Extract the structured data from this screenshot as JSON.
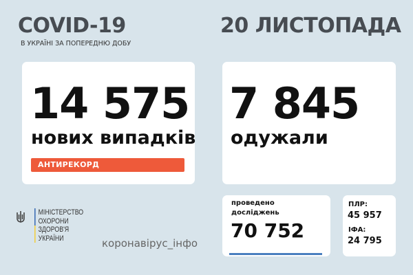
{
  "header": {
    "title": "COVID-19",
    "subtitle": "В УКРАЇНІ ЗА ПОПЕРЕДНЮ ДОБУ",
    "date": "20 ЛИСТОПАДА"
  },
  "new_cases": {
    "value": "14 575",
    "label": "нових випадків",
    "badge": "АНТИРЕКОРД",
    "badge_color": "#ee5a3a"
  },
  "recovered": {
    "value": "7 845",
    "label": "одужали"
  },
  "tests": {
    "label_line1": "проведено",
    "label_line2": "досліджень",
    "value": "70 752",
    "accent": "#4a7fbf"
  },
  "tests_breakdown": {
    "pcr_label": "ПЛР:",
    "pcr_value": "45 957",
    "ifa_label": "ІФА:",
    "ifa_value": "24 795"
  },
  "footer": {
    "ministry": [
      "МІНІСТЕРСТВО",
      "ОХОРОНИ",
      "ЗДОРОВ'Я",
      "УКРАЇНИ"
    ],
    "emblem_icon": "trident-icon",
    "site": "коронавірус_інфо"
  }
}
